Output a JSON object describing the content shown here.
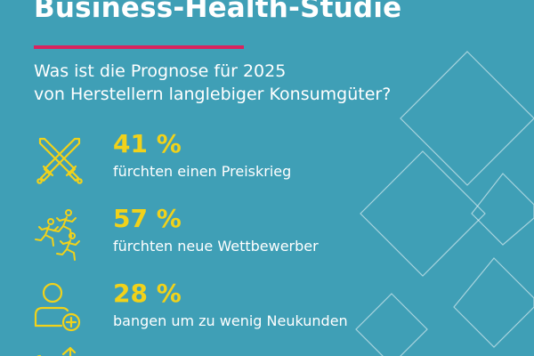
{
  "header": {
    "title": "Business-Health-Studie",
    "subtitle_line1": "Was ist die Prognose für 2025",
    "subtitle_line2": "von Herstellern langlebiger Konsumgüter?"
  },
  "stats": [
    {
      "value": "41 %",
      "text": "fürchten einen Preiskrieg",
      "icon": "crossed-swords-icon"
    },
    {
      "value": "57 %",
      "text": "fürchten neue Wettbewerber",
      "icon": "runners-icon"
    },
    {
      "value": "28 %",
      "text": "bangen um zu wenig Neukunden",
      "icon": "user-add-icon"
    }
  ],
  "colors": {
    "background": "#3f9fb6",
    "accent_yellow": "#f1d21a",
    "accent_red": "#d8235f",
    "text": "#ffffff"
  }
}
